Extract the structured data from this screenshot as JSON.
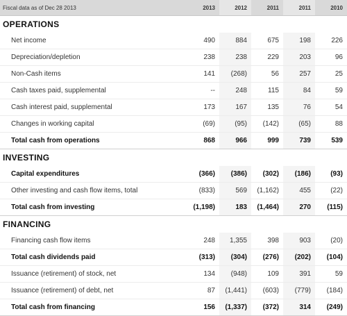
{
  "header": {
    "label": "Fiscal data as of Dec 28 2013",
    "years": [
      "2013",
      "2012",
      "2011",
      "2011",
      "2010"
    ]
  },
  "sections": {
    "operations": {
      "title": "OPERATIONS",
      "rows": [
        {
          "label": "Net income",
          "values": [
            "490",
            "884",
            "675",
            "198",
            "226"
          ],
          "bold": false
        },
        {
          "label": "Depreciation/depletion",
          "values": [
            "238",
            "238",
            "229",
            "203",
            "96"
          ],
          "bold": false
        },
        {
          "label": "Non-Cash items",
          "values": [
            "141",
            "(268)",
            "56",
            "257",
            "25"
          ],
          "bold": false
        },
        {
          "label": "Cash taxes paid, supplemental",
          "values": [
            "--",
            "248",
            "115",
            "84",
            "59"
          ],
          "bold": false
        },
        {
          "label": "Cash interest paid, supplemental",
          "values": [
            "173",
            "167",
            "135",
            "76",
            "54"
          ],
          "bold": false
        },
        {
          "label": "Changes in working capital",
          "values": [
            "(69)",
            "(95)",
            "(142)",
            "(65)",
            "88"
          ],
          "bold": false
        },
        {
          "label": "Total cash from operations",
          "values": [
            "868",
            "966",
            "999",
            "739",
            "539"
          ],
          "bold": true
        }
      ]
    },
    "investing": {
      "title": "INVESTING",
      "rows": [
        {
          "label": "Capital expenditures",
          "values": [
            "(366)",
            "(386)",
            "(302)",
            "(186)",
            "(93)"
          ],
          "bold": true
        },
        {
          "label": "Other investing and cash flow items, total",
          "values": [
            "(833)",
            "569",
            "(1,162)",
            "455",
            "(22)"
          ],
          "bold": false
        },
        {
          "label": "Total cash from investing",
          "values": [
            "(1,198)",
            "183",
            "(1,464)",
            "270",
            "(115)"
          ],
          "bold": true
        }
      ]
    },
    "financing": {
      "title": "FINANCING",
      "rows": [
        {
          "label": "Financing cash flow items",
          "values": [
            "248",
            "1,355",
            "398",
            "903",
            "(20)"
          ],
          "bold": false
        },
        {
          "label": "Total cash dividends paid",
          "values": [
            "(313)",
            "(304)",
            "(276)",
            "(202)",
            "(104)"
          ],
          "bold": true
        },
        {
          "label": "Issuance (retirement) of stock, net",
          "values": [
            "134",
            "(948)",
            "109",
            "391",
            "59"
          ],
          "bold": false
        },
        {
          "label": "Issuance (retirement) of debt, net",
          "values": [
            "87",
            "(1,441)",
            "(603)",
            "(779)",
            "(184)"
          ],
          "bold": false
        },
        {
          "label": "Total cash from financing",
          "values": [
            "156",
            "(1,337)",
            "(372)",
            "314",
            "(249)"
          ],
          "bold": true
        }
      ]
    }
  }
}
